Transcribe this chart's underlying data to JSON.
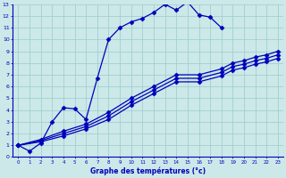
{
  "xlabel": "Graphe des températures (°c)",
  "xlim": [
    -0.5,
    23.5
  ],
  "ylim": [
    0,
    13
  ],
  "xticks": [
    0,
    1,
    2,
    3,
    4,
    5,
    6,
    7,
    8,
    9,
    10,
    11,
    12,
    13,
    14,
    15,
    16,
    17,
    18,
    19,
    20,
    21,
    22,
    23
  ],
  "yticks": [
    0,
    1,
    2,
    3,
    4,
    5,
    6,
    7,
    8,
    9,
    10,
    11,
    12,
    13
  ],
  "bg_color": "#cce8e8",
  "grid_color": "#99cccc",
  "line_color": "#0000bb",
  "lines": [
    {
      "x": [
        0,
        1,
        2,
        3,
        4,
        5,
        6,
        7,
        8,
        9,
        10,
        11,
        12,
        13,
        14,
        15,
        16,
        17,
        18
      ],
      "y": [
        1,
        0.5,
        1.2,
        3.0,
        4.2,
        4.1,
        3.2,
        6.7,
        10.0,
        11.0,
        11.5,
        11.8,
        12.3,
        13.0,
        12.5,
        13.2,
        12.1,
        11.9,
        11.0
      ],
      "marker": "D",
      "ms": 2.5,
      "lw": 0.9
    },
    {
      "x": [
        0,
        2,
        4,
        6,
        8,
        10,
        12,
        14,
        16,
        18,
        19,
        20,
        21,
        22,
        23
      ],
      "y": [
        1,
        1.5,
        2.2,
        2.8,
        3.8,
        5.0,
        6.0,
        7.0,
        7.0,
        7.5,
        8.0,
        8.2,
        8.5,
        8.7,
        9.0
      ],
      "marker": "D",
      "ms": 2.5,
      "lw": 0.9
    },
    {
      "x": [
        0,
        2,
        4,
        6,
        8,
        10,
        12,
        14,
        16,
        18,
        19,
        20,
        21,
        22,
        23
      ],
      "y": [
        1,
        1.4,
        2.0,
        2.6,
        3.5,
        4.7,
        5.7,
        6.7,
        6.7,
        7.2,
        7.7,
        7.9,
        8.2,
        8.4,
        8.7
      ],
      "marker": "D",
      "ms": 2.5,
      "lw": 0.9
    },
    {
      "x": [
        0,
        2,
        4,
        6,
        8,
        10,
        12,
        14,
        16,
        18,
        19,
        20,
        21,
        22,
        23
      ],
      "y": [
        1,
        1.3,
        1.8,
        2.4,
        3.2,
        4.4,
        5.4,
        6.4,
        6.4,
        6.9,
        7.4,
        7.6,
        7.9,
        8.1,
        8.4
      ],
      "marker": "D",
      "ms": 2.5,
      "lw": 0.9
    }
  ]
}
